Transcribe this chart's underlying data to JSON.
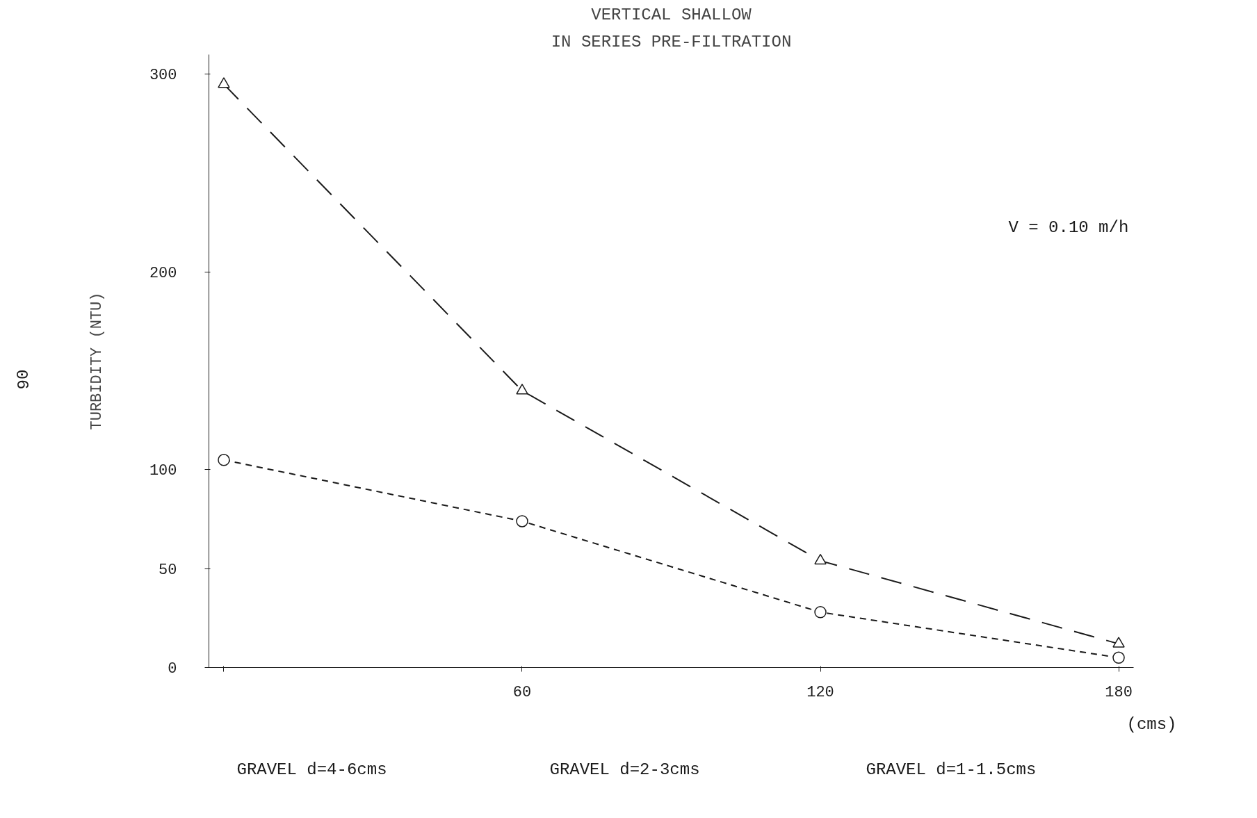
{
  "chart_data": {
    "type": "line",
    "title": "VERTICAL SHALLOW",
    "subtitle": "IN SERIES PRE-FILTRATION",
    "ylabel": "TURBIDITY (NTU)",
    "x": [
      0,
      60,
      120,
      180
    ],
    "series": [
      {
        "color": "#1a1a1a",
        "values": [
          295,
          140,
          54,
          12
        ],
        "marker": "triangle",
        "line_style": "dashed"
      },
      {
        "color": "#1a1a1a",
        "values": [
          105,
          74,
          28,
          5
        ],
        "marker": "circle",
        "line_style": "dotted"
      }
    ],
    "xlim": [
      -3,
      183
    ],
    "ylim": [
      0,
      310
    ],
    "xticks": [
      {
        "value": 0,
        "label": null
      },
      60,
      120,
      180
    ],
    "yticks": [
      0,
      50,
      100,
      200,
      300
    ],
    "grid": false,
    "annotations": [
      "V = 0.10 m/h",
      "(cms)",
      "GRAVEL d=4-6cms",
      "GRAVEL d=2-3cms",
      "GRAVEL d=1-1.5cms",
      "90"
    ]
  }
}
